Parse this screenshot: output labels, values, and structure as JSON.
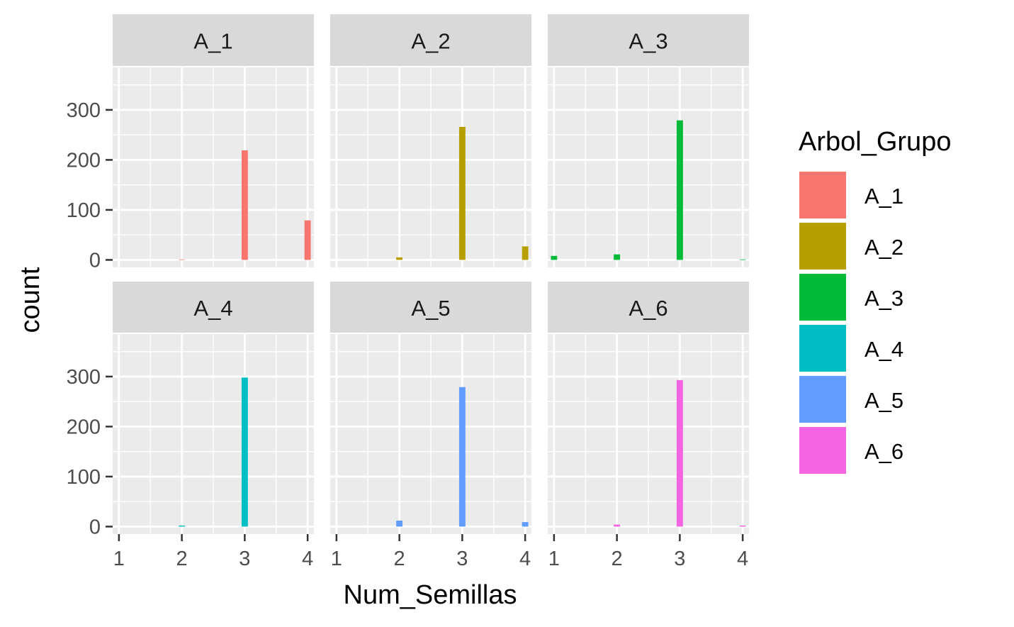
{
  "chart_data": {
    "type": "bar",
    "xlabel": "Num_Semillas",
    "ylabel": "count",
    "x_ticks": [
      "1",
      "2",
      "3",
      "4"
    ],
    "y_ticks": [
      "0",
      "100",
      "200",
      "300"
    ],
    "ylim": [
      -15,
      385
    ],
    "xlim": [
      0.9,
      4.1
    ],
    "grid": true,
    "legend_placement": "right",
    "legend": {
      "title": "Arbol_Grupo",
      "entries": [
        {
          "label": "A_1",
          "color": "#F8766D"
        },
        {
          "label": "A_2",
          "color": "#B79F00"
        },
        {
          "label": "A_3",
          "color": "#00BA38"
        },
        {
          "label": "A_4",
          "color": "#00BFC4"
        },
        {
          "label": "A_5",
          "color": "#619CFF"
        },
        {
          "label": "A_6",
          "color": "#F564E3"
        }
      ]
    },
    "panels": [
      {
        "strip": "A_1",
        "color": "#F8766D",
        "bars": [
          {
            "x": 2,
            "y": 1
          },
          {
            "x": 3,
            "y": 219
          },
          {
            "x": 4,
            "y": 79
          }
        ]
      },
      {
        "strip": "A_2",
        "color": "#B79F00",
        "bars": [
          {
            "x": 2,
            "y": 5
          },
          {
            "x": 3,
            "y": 266
          },
          {
            "x": 4,
            "y": 27
          }
        ]
      },
      {
        "strip": "A_3",
        "color": "#00BA38",
        "bars": [
          {
            "x": 1,
            "y": 8
          },
          {
            "x": 2,
            "y": 11
          },
          {
            "x": 3,
            "y": 279
          },
          {
            "x": 4,
            "y": 1
          }
        ]
      },
      {
        "strip": "A_4",
        "color": "#00BFC4",
        "bars": [
          {
            "x": 2,
            "y": 2
          },
          {
            "x": 3,
            "y": 298
          }
        ]
      },
      {
        "strip": "A_5",
        "color": "#619CFF",
        "bars": [
          {
            "x": 2,
            "y": 12
          },
          {
            "x": 3,
            "y": 279
          },
          {
            "x": 4,
            "y": 9
          }
        ]
      },
      {
        "strip": "A_6",
        "color": "#F564E3",
        "bars": [
          {
            "x": 2,
            "y": 4
          },
          {
            "x": 3,
            "y": 293
          },
          {
            "x": 4,
            "y": 2
          }
        ]
      }
    ]
  }
}
